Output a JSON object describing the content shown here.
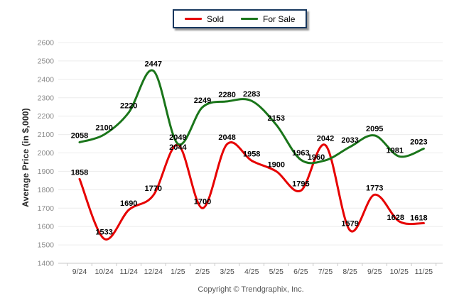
{
  "legend": {
    "border_color": "#17375e",
    "background": "#ffffff"
  },
  "footer": {
    "copyright": "Copyright © Trendgraphix, Inc."
  },
  "chart_data": {
    "type": "line",
    "title": "",
    "xlabel": "",
    "ylabel": "Average Price (in $,000)",
    "x": [
      "9/24",
      "10/24",
      "11/24",
      "12/24",
      "1/25",
      "2/25",
      "3/25",
      "4/25",
      "5/25",
      "6/25",
      "7/25",
      "8/25",
      "9/25",
      "10/25",
      "11/25"
    ],
    "series": [
      {
        "name": "Sold",
        "color": "#e60000",
        "values": [
          1858,
          1533,
          1690,
          1770,
          2044,
          1700,
          2048,
          1958,
          1900,
          1795,
          2042,
          1579,
          1773,
          1628,
          1618
        ]
      },
      {
        "name": "For Sale",
        "color": "#1a751a",
        "values": [
          2058,
          2100,
          2220,
          2447,
          2049,
          2249,
          2280,
          2283,
          2153,
          1963,
          1960,
          2033,
          2095,
          1981,
          2023
        ]
      }
    ],
    "ylim": [
      1400,
      2600
    ],
    "ytick_step": 100,
    "grid": "horizontal",
    "smooth": true,
    "data_labels": true,
    "legend_position": "top-center"
  }
}
